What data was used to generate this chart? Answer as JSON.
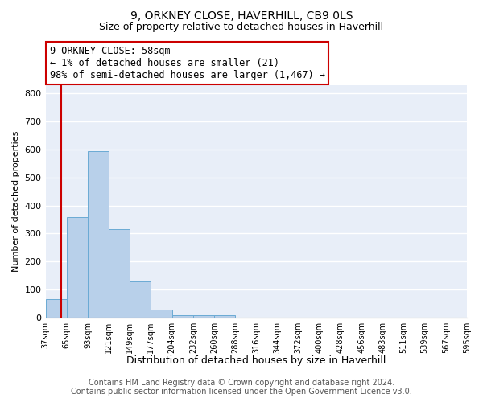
{
  "title1": "9, ORKNEY CLOSE, HAVERHILL, CB9 0LS",
  "title2": "Size of property relative to detached houses in Haverhill",
  "xlabel": "Distribution of detached houses by size in Haverhill",
  "ylabel": "Number of detached properties",
  "footer1": "Contains HM Land Registry data © Crown copyright and database right 2024.",
  "footer2": "Contains public sector information licensed under the Open Government Licence v3.0.",
  "annotation_line1": "9 ORKNEY CLOSE: 58sqm",
  "annotation_line2": "← 1% of detached houses are smaller (21)",
  "annotation_line3": "98% of semi-detached houses are larger (1,467) →",
  "bar_values": [
    65,
    358,
    595,
    315,
    128,
    30,
    10,
    10,
    10,
    0,
    0,
    0,
    0,
    0,
    0,
    0,
    0,
    0,
    0,
    0
  ],
  "bin_labels": [
    "37sqm",
    "65sqm",
    "93sqm",
    "121sqm",
    "149sqm",
    "177sqm",
    "204sqm",
    "232sqm",
    "260sqm",
    "288sqm",
    "316sqm",
    "344sqm",
    "372sqm",
    "400sqm",
    "428sqm",
    "456sqm",
    "483sqm",
    "511sqm",
    "539sqm",
    "567sqm",
    "595sqm"
  ],
  "bar_color": "#b8d0ea",
  "bar_edgecolor": "#6aaad4",
  "property_line_x": 0.75,
  "property_line_color": "#cc0000",
  "ylim": [
    0,
    830
  ],
  "yticks": [
    0,
    100,
    200,
    300,
    400,
    500,
    600,
    700,
    800
  ],
  "background_color": "#e8eef8",
  "grid_color": "#ffffff",
  "annotation_box_color": "#ffffff",
  "annotation_box_edgecolor": "#cc0000",
  "title1_fontsize": 10,
  "title2_fontsize": 9,
  "xlabel_fontsize": 9,
  "ylabel_fontsize": 8,
  "tick_fontsize": 8,
  "xtick_fontsize": 7,
  "footer_fontsize": 7,
  "annotation_fontsize": 8.5
}
